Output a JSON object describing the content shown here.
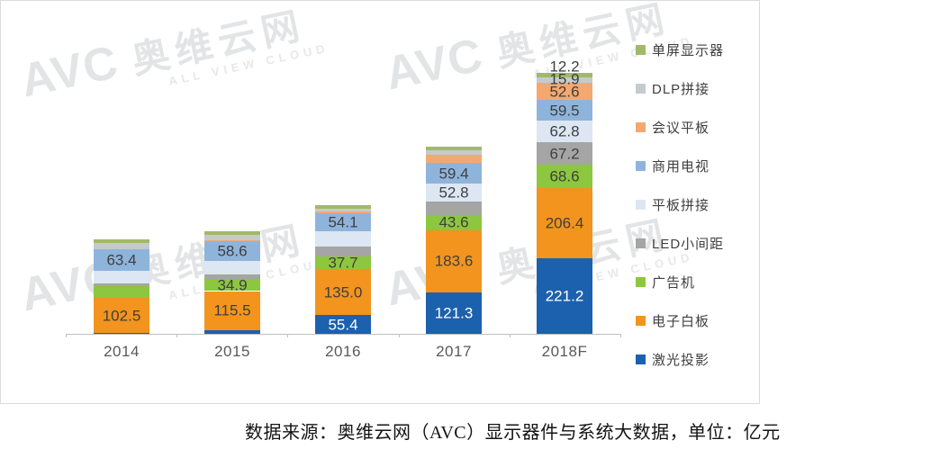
{
  "watermark": {
    "brand": "AVC",
    "cn": "奥维云网",
    "en": "ALL VIEW CLOUD"
  },
  "caption": "数据来源：奥维云网（AVC）显示器件与系统大数据，单位：亿元",
  "chart_data": {
    "type": "bar",
    "stacked": true,
    "unit": "亿元",
    "categories": [
      "2014",
      "2015",
      "2016",
      "2017",
      "2018F"
    ],
    "series": [
      {
        "name": "激光投影",
        "color": "#1C61AE",
        "label_color": "#FFFFFF",
        "values": [
          2,
          10,
          55.4,
          121.3,
          221.2
        ],
        "labels": [
          "",
          "",
          "55.4",
          "121.3",
          "221.2"
        ]
      },
      {
        "name": "电子白板",
        "color": "#F2941D",
        "label_color": "#3F3F3F",
        "values": [
          102.5,
          115.5,
          135.0,
          183.6,
          206.4
        ],
        "labels": [
          "102.5",
          "115.5",
          "135.0",
          "183.6",
          "206.4"
        ]
      },
      {
        "name": "广告机",
        "color": "#8DC63F",
        "label_color": "#3F3F3F",
        "values": [
          36,
          34.9,
          37.7,
          43.6,
          68.6
        ],
        "labels": [
          "",
          "34.9",
          "37.7",
          "43.6",
          "68.6"
        ]
      },
      {
        "name": "LED小间距",
        "color": "#A5A5A5",
        "label_color": "#3F3F3F",
        "values": [
          7,
          15,
          28,
          40,
          67.2
        ],
        "labels": [
          "",
          "",
          "",
          "",
          "67.2"
        ]
      },
      {
        "name": "平板拼接",
        "color": "#DCE7F3",
        "label_color": "#3F3F3F",
        "values": [
          38,
          38,
          45,
          52.8,
          62.8
        ],
        "labels": [
          "",
          "",
          "",
          "52.8",
          "62.8"
        ]
      },
      {
        "name": "商用电视",
        "color": "#8FB4DC",
        "label_color": "#3F3F3F",
        "values": [
          63.4,
          58.6,
          54.1,
          59.4,
          59.5
        ],
        "labels": [
          "63.4",
          "58.6",
          "54.1",
          "59.4",
          "59.5"
        ]
      },
      {
        "name": "会议平板",
        "color": "#F3A870",
        "label_color": "#3F3F3F",
        "values": [
          0,
          2,
          3,
          25,
          52.6
        ],
        "labels": [
          "",
          "",
          "",
          "",
          "52.6"
        ]
      },
      {
        "name": "DLP拼接",
        "color": "#C5CACD",
        "label_color": "#3F3F3F",
        "values": [
          17,
          16,
          10,
          14,
          15.9
        ],
        "labels": [
          "",
          "",
          "",
          "",
          "15.9"
        ]
      },
      {
        "name": "单屏显示器",
        "color": "#A2B969",
        "label_color": "#3F3F3F",
        "values": [
          11,
          12,
          9,
          11,
          12.2
        ],
        "labels": [
          "",
          "",
          "",
          "",
          "12.2"
        ]
      }
    ],
    "legend_top_to_bottom": [
      "单屏显示器",
      "DLP拼接",
      "会议平板",
      "商用电视",
      "平板拼接",
      "LED小间距",
      "广告机",
      "电子白板",
      "激光投影"
    ],
    "ylim": [
      0,
      800
    ],
    "gridlines": false,
    "y_axis_visible": false,
    "legend_position": "right"
  }
}
